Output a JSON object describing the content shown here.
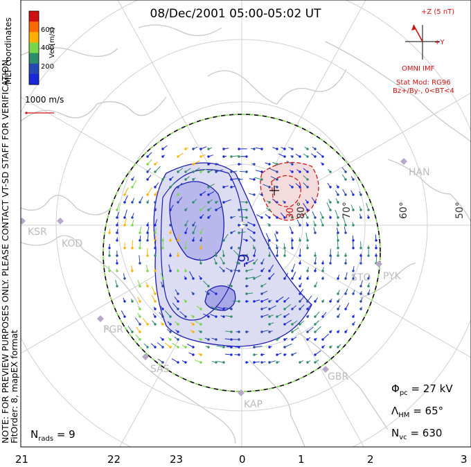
{
  "title": "08/Dec/2001  05:00-05:02 UT",
  "colorbar": {
    "unit_label": "Vel [m/s]",
    "ticks": [
      "600",
      "400",
      "200"
    ],
    "colors": [
      "#d01010",
      "#ff6a00",
      "#ffb000",
      "#78d64a",
      "#2f8c6a",
      "#2848b0",
      "#1828d8"
    ]
  },
  "coord_label": "MLT coordinates",
  "scale_vector": "1000 m/s",
  "note": "NOTE: FOR PREVIEW PURPOSES ONLY. PLEASE CONTACT VT-SD STAFF FOR VERIFICATION.",
  "fit_order": "FitOrder: 8, mapEX format",
  "imf": {
    "z_label": "+Z (5 nT)",
    "y_label": "+Y",
    "source": "OMNI IMF",
    "stat_mod": "Stat Mod: RG96",
    "condition": "Bz+/By-, 0<BT<4"
  },
  "latitude_labels": [
    "80°",
    "70°",
    "60°",
    "50°"
  ],
  "contour_labels": [
    "30",
    "-9"
  ],
  "stations": [
    "HAN",
    "KSR",
    "KOD",
    "PGR",
    "SAS",
    "KAP",
    "GBR",
    "STO",
    "PYK"
  ],
  "stats": {
    "phi_pc": "= 27 kV",
    "lambda_hm": "= 65°",
    "n_vc": "= 630",
    "n_rads": "= 9"
  },
  "mlt_ticks": [
    "21",
    "22",
    "23",
    "0",
    "1",
    "2",
    "3"
  ]
}
